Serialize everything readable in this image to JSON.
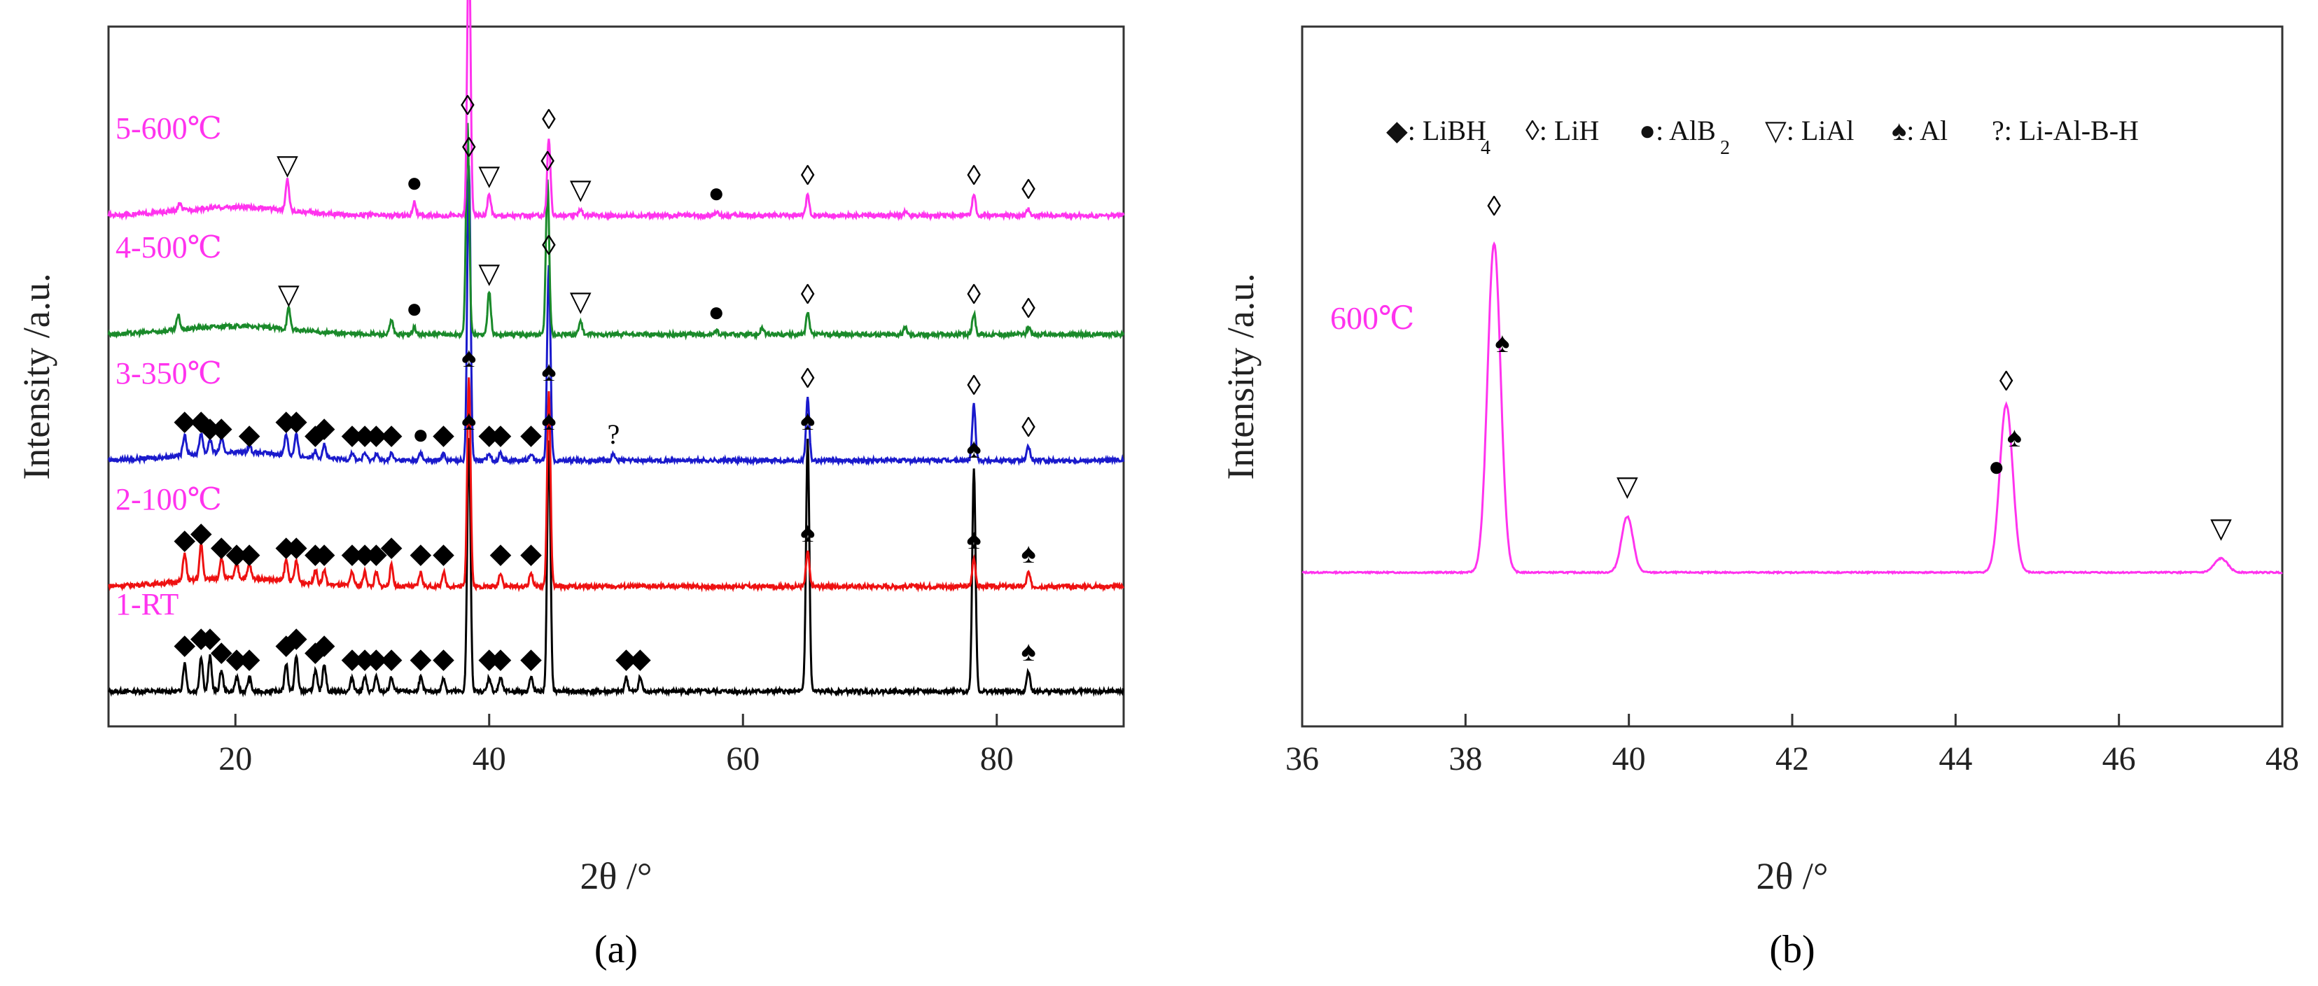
{
  "chart_data": [
    {
      "type": "line",
      "panel_label": "(a)",
      "xlabel": "2θ /°",
      "ylabel": "Intensity /a.u.",
      "xlim": [
        10,
        90
      ],
      "xticks": [
        20,
        40,
        60,
        80
      ],
      "series": [
        {
          "name": "1-RT",
          "color": "#000000",
          "baseline": 0.05,
          "peaks": [
            [
              16,
              0.04
            ],
            [
              17.3,
              0.05
            ],
            [
              18,
              0.05
            ],
            [
              18.9,
              0.03
            ],
            [
              20.1,
              0.02
            ],
            [
              21.1,
              0.02
            ],
            [
              24,
              0.04
            ],
            [
              24.8,
              0.05
            ],
            [
              26.3,
              0.03
            ],
            [
              27,
              0.04
            ],
            [
              29.2,
              0.02
            ],
            [
              30.2,
              0.02
            ],
            [
              31.1,
              0.02
            ],
            [
              32.3,
              0.02
            ],
            [
              34.6,
              0.02
            ],
            [
              36.4,
              0.02
            ],
            [
              38.4,
              0.36
            ],
            [
              40,
              0.02
            ],
            [
              40.9,
              0.02
            ],
            [
              43.3,
              0.02
            ],
            [
              44.7,
              0.36
            ],
            [
              50.8,
              0.02
            ],
            [
              51.9,
              0.02
            ],
            [
              65.1,
              0.36
            ],
            [
              78.2,
              0.32
            ],
            [
              82.5,
              0.03
            ]
          ]
        },
        {
          "name": "2-100℃",
          "color": "#ee1111",
          "baseline": 0.2,
          "peaks": [
            [
              16,
              0.04
            ],
            [
              17.3,
              0.05
            ],
            [
              18.9,
              0.03
            ],
            [
              20.1,
              0.02
            ],
            [
              21.1,
              0.02
            ],
            [
              24,
              0.03
            ],
            [
              24.8,
              0.03
            ],
            [
              26.3,
              0.02
            ],
            [
              27,
              0.02
            ],
            [
              29.2,
              0.02
            ],
            [
              30.2,
              0.02
            ],
            [
              31.1,
              0.02
            ],
            [
              32.3,
              0.03
            ],
            [
              34.6,
              0.02
            ],
            [
              36.4,
              0.02
            ],
            [
              38.4,
              0.3
            ],
            [
              40.9,
              0.02
            ],
            [
              43.3,
              0.02
            ],
            [
              44.7,
              0.28
            ],
            [
              65.1,
              0.05
            ],
            [
              78.2,
              0.04
            ],
            [
              82.5,
              0.02
            ]
          ]
        },
        {
          "name": "3-350℃",
          "color": "#1a1acc",
          "baseline": 0.38,
          "peaks": [
            [
              16,
              0.03
            ],
            [
              17.3,
              0.03
            ],
            [
              18,
              0.02
            ],
            [
              18.9,
              0.02
            ],
            [
              21.1,
              0.01
            ],
            [
              24,
              0.03
            ],
            [
              24.8,
              0.03
            ],
            [
              26.3,
              0.01
            ],
            [
              27,
              0.02
            ],
            [
              29.2,
              0.01
            ],
            [
              30.2,
              0.01
            ],
            [
              31.1,
              0.01
            ],
            [
              32.3,
              0.01
            ],
            [
              34.6,
              0.01
            ],
            [
              36.4,
              0.01
            ],
            [
              38.4,
              0.42
            ],
            [
              40,
              0.01
            ],
            [
              40.9,
              0.01
            ],
            [
              43.3,
              0.01
            ],
            [
              44.7,
              0.28
            ],
            [
              49.8,
              0.01
            ],
            [
              65.1,
              0.09
            ],
            [
              78.2,
              0.08
            ],
            [
              82.5,
              0.02
            ]
          ]
        },
        {
          "name": "4-500℃",
          "color": "#1a8a2a",
          "baseline": 0.56,
          "peaks": [
            [
              15.5,
              0.02
            ],
            [
              24.2,
              0.03
            ],
            [
              32.3,
              0.02
            ],
            [
              34.1,
              0.01
            ],
            [
              38.3,
              0.3
            ],
            [
              40,
              0.06
            ],
            [
              44.6,
              0.22
            ],
            [
              47.2,
              0.02
            ],
            [
              57.9,
              0.005
            ],
            [
              61.5,
              0.01
            ],
            [
              65.1,
              0.03
            ],
            [
              72.8,
              0.01
            ],
            [
              78.2,
              0.03
            ],
            [
              82.5,
              0.01
            ]
          ]
        },
        {
          "name": "5-600℃",
          "color": "#ff33ee",
          "baseline": 0.73,
          "peaks": [
            [
              15.6,
              0.01
            ],
            [
              24.1,
              0.045
            ],
            [
              34.1,
              0.02
            ],
            [
              38.4,
              0.4
            ],
            [
              40,
              0.03
            ],
            [
              44.7,
              0.11
            ],
            [
              47.2,
              0.01
            ],
            [
              57.9,
              0.005
            ],
            [
              65.1,
              0.03
            ],
            [
              72.8,
              0.005
            ],
            [
              78.2,
              0.03
            ],
            [
              82.5,
              0.01
            ]
          ]
        }
      ],
      "annotations": [
        {
          "series": "1-RT",
          "markers": [
            [
              16,
              "◆"
            ],
            [
              17.3,
              "◆"
            ],
            [
              18,
              "◆"
            ],
            [
              18.9,
              "◆"
            ],
            [
              20.1,
              "◆"
            ],
            [
              21.1,
              "◆"
            ],
            [
              24,
              "◆"
            ],
            [
              24.8,
              "◆"
            ],
            [
              26.3,
              "◆"
            ],
            [
              27,
              "◆"
            ],
            [
              29.2,
              "◆"
            ],
            [
              30.2,
              "◆"
            ],
            [
              31.1,
              "◆"
            ],
            [
              32.3,
              "◆"
            ],
            [
              34.6,
              "◆"
            ],
            [
              36.4,
              "◆"
            ],
            [
              38.4,
              "♠"
            ],
            [
              40,
              "◆"
            ],
            [
              40.9,
              "◆"
            ],
            [
              43.3,
              "◆"
            ],
            [
              44.7,
              "♠"
            ],
            [
              50.8,
              "◆"
            ],
            [
              51.9,
              "◆"
            ],
            [
              65.1,
              "♠"
            ],
            [
              78.2,
              "♠"
            ],
            [
              82.5,
              "♠"
            ]
          ]
        },
        {
          "series": "2-100℃",
          "markers": [
            [
              16,
              "◆"
            ],
            [
              17.3,
              "◆"
            ],
            [
              18.9,
              "◆"
            ],
            [
              20.1,
              "◆"
            ],
            [
              21.1,
              "◆"
            ],
            [
              24,
              "◆"
            ],
            [
              24.8,
              "◆"
            ],
            [
              26.3,
              "◆"
            ],
            [
              27,
              "◆"
            ],
            [
              29.2,
              "◆"
            ],
            [
              30.2,
              "◆"
            ],
            [
              31.1,
              "◆"
            ],
            [
              32.3,
              "◆"
            ],
            [
              34.6,
              "◆"
            ],
            [
              36.4,
              "◆"
            ],
            [
              38.4,
              "♠"
            ],
            [
              40.9,
              "◆"
            ],
            [
              43.3,
              "◆"
            ],
            [
              44.7,
              "♠"
            ],
            [
              65.1,
              "♠"
            ],
            [
              78.2,
              "♠"
            ],
            [
              82.5,
              "♠"
            ]
          ]
        },
        {
          "series": "3-350℃",
          "markers": [
            [
              16,
              "◆"
            ],
            [
              17.3,
              "◆"
            ],
            [
              18,
              "◆"
            ],
            [
              18.9,
              "◆"
            ],
            [
              21.1,
              "◆"
            ],
            [
              24,
              "◆"
            ],
            [
              24.8,
              "◆"
            ],
            [
              26.3,
              "◆"
            ],
            [
              27,
              "◆"
            ],
            [
              29.2,
              "◆"
            ],
            [
              30.2,
              "◆"
            ],
            [
              31.1,
              "◆"
            ],
            [
              32.3,
              "◆"
            ],
            [
              34.6,
              "●"
            ],
            [
              36.4,
              "◆"
            ],
            [
              38.4,
              "◊"
            ],
            [
              40,
              "◆"
            ],
            [
              40.9,
              "◆"
            ],
            [
              43.3,
              "◆"
            ],
            [
              44.7,
              "◊"
            ],
            [
              49.8,
              "?"
            ],
            [
              65.1,
              "◊"
            ],
            [
              78.2,
              "◊"
            ],
            [
              82.5,
              "◊"
            ]
          ]
        },
        {
          "series": "4-500℃",
          "markers": [
            [
              24.2,
              "▽"
            ],
            [
              34.1,
              "●"
            ],
            [
              38.3,
              "◊"
            ],
            [
              40,
              "▽"
            ],
            [
              44.6,
              "◊"
            ],
            [
              47.2,
              "▽"
            ],
            [
              57.9,
              "●"
            ],
            [
              65.1,
              "◊"
            ],
            [
              78.2,
              "◊"
            ],
            [
              82.5,
              "◊"
            ]
          ]
        },
        {
          "series": "5-600℃",
          "markers": [
            [
              24.1,
              "▽"
            ],
            [
              34.1,
              "●"
            ],
            [
              38.4,
              "◊"
            ],
            [
              40,
              "▽"
            ],
            [
              44.7,
              "◊"
            ],
            [
              47.2,
              "▽"
            ],
            [
              57.9,
              "●"
            ],
            [
              65.1,
              "◊"
            ],
            [
              78.2,
              "◊"
            ],
            [
              82.5,
              "◊"
            ]
          ]
        }
      ]
    },
    {
      "type": "line",
      "panel_label": "(b)",
      "xlabel": "2θ /°",
      "ylabel": "Intensity /a.u.",
      "xlim": [
        36,
        48
      ],
      "xticks": [
        36,
        38,
        40,
        42,
        44,
        46,
        48
      ],
      "series": [
        {
          "name": "600℃",
          "color": "#ff33ee",
          "baseline": 0.22,
          "peaks": [
            [
              38.35,
              0.47,
              0.08
            ],
            [
              39.98,
              0.08,
              0.07
            ],
            [
              44.62,
              0.24,
              0.08
            ],
            [
              47.25,
              0.02,
              0.08
            ]
          ]
        }
      ],
      "legend": [
        {
          "symbol": "◆",
          "label": "LiBH",
          "sub": "4"
        },
        {
          "symbol": "◊",
          "label": "LiH",
          "sub": ""
        },
        {
          "symbol": "●",
          "label": "AlB",
          "sub": "2"
        },
        {
          "symbol": "▽",
          "label": "LiAl",
          "sub": ""
        },
        {
          "symbol": "♠",
          "label": "Al",
          "sub": ""
        },
        {
          "symbol": "?",
          "label": "Li-Al-B-H",
          "sub": ""
        }
      ],
      "markers": [
        [
          38.35,
          "◊"
        ],
        [
          38.45,
          "♠"
        ],
        [
          39.98,
          "▽"
        ],
        [
          44.5,
          "●"
        ],
        [
          44.62,
          "◊"
        ],
        [
          44.72,
          "♠"
        ],
        [
          47.25,
          "▽"
        ]
      ]
    }
  ]
}
